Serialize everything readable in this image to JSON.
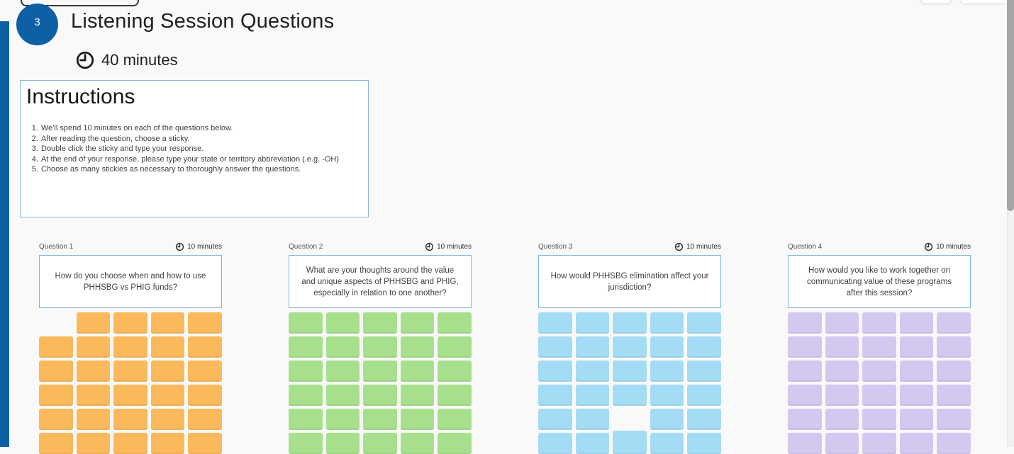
{
  "colors": {
    "accent_blue": "#0e60a4",
    "canvas_background": "#f9f9f9",
    "box_border_blue": "#7db6da",
    "sticky_orange": "#fbb95c",
    "sticky_green": "#a7e08d",
    "sticky_blue": "#a5dcf5",
    "sticky_purple": "#d4c8f1"
  },
  "header": {
    "step_number": "3",
    "title": "Listening Session Questions",
    "timer_label": "40 minutes",
    "timer_icon": "clock-icon"
  },
  "instructions": {
    "title": "Instructions",
    "items": [
      "We'll spend 10 minutes on each of the questions below.",
      "After reading the question, choose a sticky.",
      "Double click the sticky and type your response.",
      "At the end of your response, please type your state or territory abbreviation (.e.g.  -OH)",
      "Choose as many stickies as necessary to thoroughly answer the questions."
    ]
  },
  "questions": [
    {
      "label": "Question 1",
      "timer": "10 minutes",
      "text": "How do you choose when and how to use PHHSBG vs PHIG funds?",
      "sticky_color": "#fbb95c",
      "rows": 6,
      "cols": 5,
      "missing_cells": [
        0
      ],
      "raised_cells": {}
    },
    {
      "label": "Question 2",
      "timer": "10 minutes",
      "text": "What are your thoughts around the value and unique aspects of PHHSBG and PHIG, especially in relation to one another?",
      "sticky_color": "#a7e08d",
      "rows": 6,
      "cols": 5,
      "missing_cells": [],
      "raised_cells": {}
    },
    {
      "label": "Question 3",
      "timer": "10 minutes",
      "text": "How would PHHSBG elimination affect your jurisdiction?",
      "sticky_color": "#a5dcf5",
      "rows": 6,
      "cols": 5,
      "missing_cells": [
        22
      ],
      "raised_cells": {
        "27": -3
      }
    },
    {
      "label": "Question 4",
      "timer": "10 minutes",
      "text": "How would you like to work together on communicating value of these programs after this session?",
      "sticky_color": "#d4c8f1",
      "rows": 6,
      "cols": 5,
      "missing_cells": [],
      "raised_cells": {}
    }
  ],
  "scrollbar": {
    "thumb_top": 0,
    "thumb_height": 298
  }
}
